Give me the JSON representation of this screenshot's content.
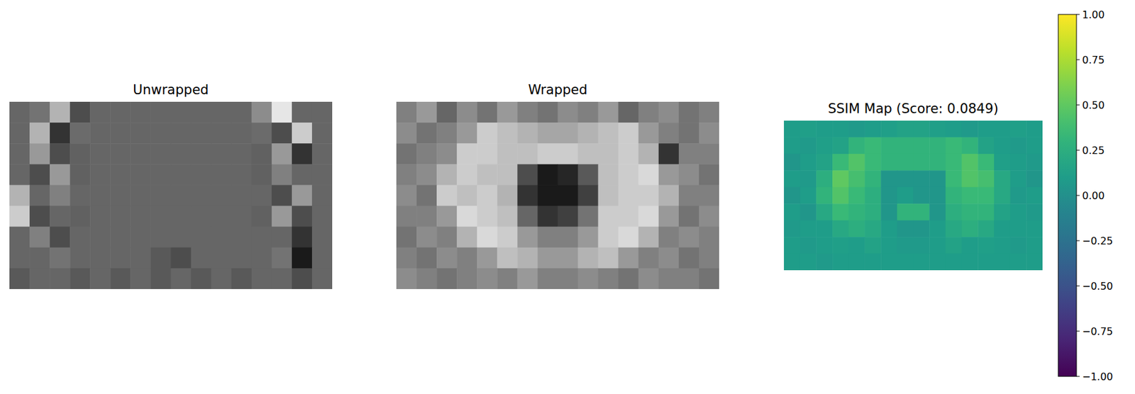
{
  "chart_data": [
    {
      "type": "image",
      "title": "Unwrapped",
      "color": "gray",
      "range": [
        0,
        1
      ],
      "tick_labels": false,
      "cells": [
        [
          0.4,
          0.45,
          0.7,
          0.3,
          0.4,
          0.4,
          0.4,
          0.4,
          0.4,
          0.4,
          0.4,
          0.4,
          0.55,
          0.9,
          0.4,
          0.4
        ],
        [
          0.4,
          0.7,
          0.2,
          0.42,
          0.4,
          0.4,
          0.4,
          0.4,
          0.4,
          0.4,
          0.4,
          0.4,
          0.42,
          0.3,
          0.8,
          0.4
        ],
        [
          0.4,
          0.6,
          0.3,
          0.38,
          0.4,
          0.4,
          0.4,
          0.4,
          0.4,
          0.4,
          0.4,
          0.4,
          0.38,
          0.6,
          0.2,
          0.4
        ],
        [
          0.4,
          0.3,
          0.6,
          0.38,
          0.4,
          0.4,
          0.4,
          0.4,
          0.4,
          0.4,
          0.4,
          0.4,
          0.38,
          0.5,
          0.4,
          0.4
        ],
        [
          0.7,
          0.4,
          0.5,
          0.4,
          0.4,
          0.4,
          0.4,
          0.4,
          0.4,
          0.4,
          0.4,
          0.4,
          0.4,
          0.3,
          0.6,
          0.4
        ],
        [
          0.8,
          0.3,
          0.4,
          0.38,
          0.4,
          0.4,
          0.4,
          0.4,
          0.4,
          0.4,
          0.4,
          0.4,
          0.38,
          0.6,
          0.3,
          0.4
        ],
        [
          0.4,
          0.5,
          0.3,
          0.4,
          0.4,
          0.4,
          0.4,
          0.4,
          0.4,
          0.4,
          0.4,
          0.4,
          0.4,
          0.4,
          0.2,
          0.4
        ],
        [
          0.4,
          0.4,
          0.45,
          0.4,
          0.4,
          0.4,
          0.4,
          0.35,
          0.3,
          0.4,
          0.4,
          0.4,
          0.4,
          0.45,
          0.1,
          0.4
        ],
        [
          0.35,
          0.4,
          0.4,
          0.35,
          0.4,
          0.35,
          0.4,
          0.35,
          0.4,
          0.35,
          0.4,
          0.35,
          0.4,
          0.4,
          0.3,
          0.4
        ]
      ]
    },
    {
      "type": "image",
      "title": "Wrapped",
      "color": "gray",
      "range": [
        0,
        1
      ],
      "tick_labels": false,
      "cells": [
        [
          0.5,
          0.6,
          0.4,
          0.55,
          0.45,
          0.6,
          0.5,
          0.45,
          0.55,
          0.5,
          0.6,
          0.4,
          0.5,
          0.55,
          0.45,
          0.5
        ],
        [
          0.55,
          0.45,
          0.5,
          0.6,
          0.8,
          0.75,
          0.7,
          0.65,
          0.65,
          0.7,
          0.75,
          0.8,
          0.6,
          0.5,
          0.45,
          0.55
        ],
        [
          0.45,
          0.5,
          0.55,
          0.8,
          0.8,
          0.75,
          0.75,
          0.8,
          0.8,
          0.75,
          0.75,
          0.8,
          0.7,
          0.2,
          0.5,
          0.5
        ],
        [
          0.5,
          0.55,
          0.7,
          0.8,
          0.75,
          0.75,
          0.3,
          0.1,
          0.15,
          0.35,
          0.75,
          0.8,
          0.85,
          0.6,
          0.55,
          0.45
        ],
        [
          0.55,
          0.45,
          0.8,
          0.75,
          0.8,
          0.7,
          0.2,
          0.1,
          0.1,
          0.25,
          0.75,
          0.8,
          0.8,
          0.7,
          0.5,
          0.5
        ],
        [
          0.5,
          0.5,
          0.6,
          0.85,
          0.8,
          0.75,
          0.4,
          0.2,
          0.25,
          0.45,
          0.8,
          0.8,
          0.85,
          0.6,
          0.45,
          0.55
        ],
        [
          0.45,
          0.55,
          0.5,
          0.7,
          0.85,
          0.8,
          0.6,
          0.5,
          0.5,
          0.6,
          0.8,
          0.85,
          0.7,
          0.5,
          0.55,
          0.5
        ],
        [
          0.5,
          0.45,
          0.55,
          0.5,
          0.6,
          0.75,
          0.7,
          0.6,
          0.6,
          0.7,
          0.75,
          0.6,
          0.5,
          0.55,
          0.45,
          0.5
        ],
        [
          0.55,
          0.5,
          0.45,
          0.5,
          0.55,
          0.5,
          0.6,
          0.5,
          0.5,
          0.55,
          0.5,
          0.45,
          0.55,
          0.5,
          0.5,
          0.45
        ]
      ]
    },
    {
      "type": "heatmap",
      "title": "SSIM Map (Score: 0.0849)",
      "color": "viridis",
      "tick_labels": false,
      "cells": [
        [
          0.1,
          0.12,
          0.1,
          0.1,
          0.08,
          0.1,
          0.12,
          0.15,
          0.15,
          0.12,
          0.1,
          0.08,
          0.1,
          0.1,
          0.12,
          0.1
        ],
        [
          0.1,
          0.08,
          0.12,
          0.15,
          0.3,
          0.35,
          0.3,
          0.3,
          0.3,
          0.3,
          0.35,
          0.3,
          0.15,
          0.1,
          0.08,
          0.1
        ],
        [
          0.05,
          0.1,
          0.15,
          0.35,
          0.45,
          0.35,
          0.3,
          0.3,
          0.3,
          0.3,
          0.35,
          0.45,
          0.35,
          0.12,
          0.1,
          0.08
        ],
        [
          0.1,
          0.08,
          0.25,
          0.5,
          0.4,
          0.3,
          0.05,
          0.05,
          0.05,
          0.05,
          0.35,
          0.45,
          0.4,
          0.2,
          0.1,
          0.05
        ],
        [
          0.05,
          0.1,
          0.3,
          0.45,
          0.35,
          0.25,
          0.05,
          0.1,
          0.05,
          0.05,
          0.3,
          0.35,
          0.35,
          0.2,
          0.08,
          0.1
        ],
        [
          0.1,
          0.05,
          0.2,
          0.35,
          0.3,
          0.25,
          0.05,
          0.3,
          0.3,
          0.05,
          0.25,
          0.3,
          0.3,
          0.15,
          0.1,
          0.08
        ],
        [
          0.08,
          0.1,
          0.1,
          0.2,
          0.25,
          0.2,
          0.1,
          0.05,
          0.05,
          0.1,
          0.2,
          0.25,
          0.2,
          0.1,
          0.1,
          0.1
        ],
        [
          0.1,
          0.08,
          0.1,
          0.12,
          0.1,
          0.15,
          0.1,
          0.08,
          0.08,
          0.1,
          0.15,
          0.1,
          0.12,
          0.1,
          0.08,
          0.1
        ],
        [
          0.1,
          0.1,
          0.08,
          0.1,
          0.1,
          0.1,
          0.1,
          0.1,
          0.1,
          0.1,
          0.1,
          0.1,
          0.1,
          0.1,
          0.1,
          0.1
        ]
      ],
      "colorbar": {
        "range": [
          -1,
          1
        ],
        "ticks": [
          {
            "value": -1,
            "label": "−1.00"
          },
          {
            "value": -0.75,
            "label": "−0.75"
          },
          {
            "value": -0.5,
            "label": "−0.50"
          },
          {
            "value": -0.25,
            "label": "−0.25"
          },
          {
            "value": 0,
            "label": "0.00"
          },
          {
            "value": 0.25,
            "label": "0.25"
          },
          {
            "value": 0.5,
            "label": "0.50"
          },
          {
            "value": 0.75,
            "label": "0.75"
          },
          {
            "value": 1,
            "label": "1.00"
          }
        ]
      }
    }
  ]
}
